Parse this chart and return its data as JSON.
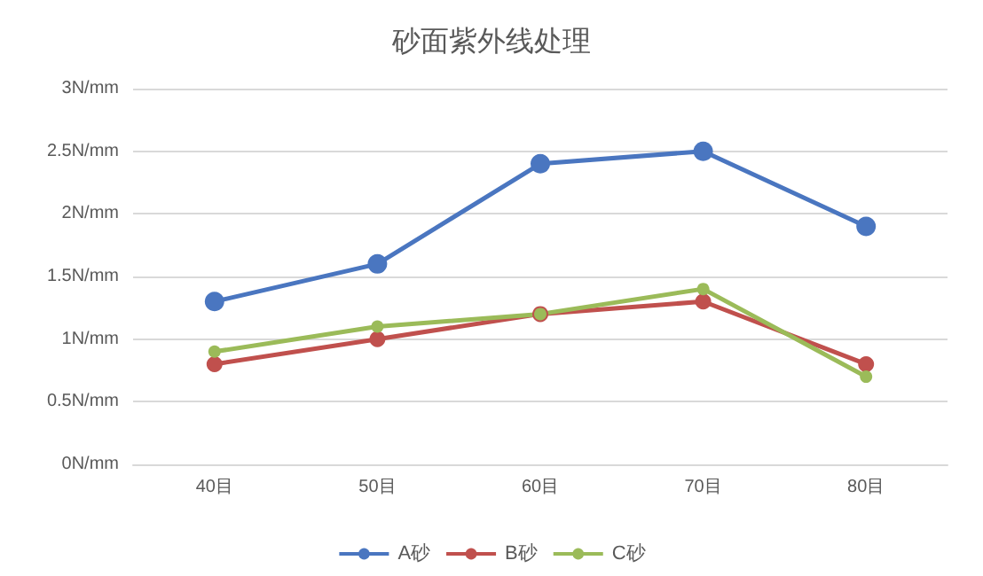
{
  "chart_data": {
    "type": "line",
    "title": "砂面紫外线处理",
    "categories": [
      "40目",
      "50目",
      "60目",
      "70目",
      "80目"
    ],
    "series": [
      {
        "name": "A砂",
        "color": "#4a76c0",
        "values": [
          1.3,
          1.6,
          2.4,
          2.5,
          1.9
        ]
      },
      {
        "name": "B砂",
        "color": "#c0504d",
        "values": [
          0.8,
          1.0,
          1.2,
          1.3,
          0.8
        ]
      },
      {
        "name": "C砂",
        "color": "#9bbb59",
        "values": [
          0.9,
          1.1,
          1.2,
          1.4,
          0.7
        ]
      }
    ],
    "ylim": [
      0,
      3
    ],
    "yticks": [
      {
        "value": 0,
        "label": "0N/mm"
      },
      {
        "value": 0.5,
        "label": "0.5N/mm"
      },
      {
        "value": 1,
        "label": "1N/mm"
      },
      {
        "value": 1.5,
        "label": "1.5N/mm"
      },
      {
        "value": 2,
        "label": "2N/mm"
      },
      {
        "value": 2.5,
        "label": "2.5N/mm"
      },
      {
        "value": 3,
        "label": "3N/mm"
      }
    ],
    "grid": "y",
    "legend": "bottom",
    "marker": "circle",
    "line_style": "solid"
  }
}
